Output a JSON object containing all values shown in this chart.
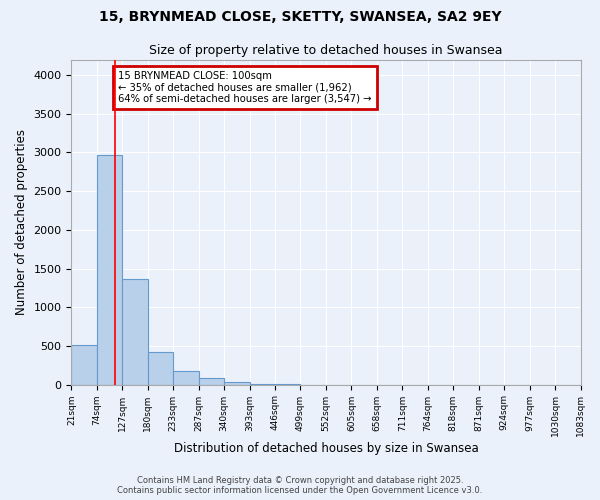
{
  "title1": "15, BRYNMEAD CLOSE, SKETTY, SWANSEA, SA2 9EY",
  "title2": "Size of property relative to detached houses in Swansea",
  "xlabel": "Distribution of detached houses by size in Swansea",
  "ylabel": "Number of detached properties",
  "bar_heights": [
    510,
    2970,
    1360,
    420,
    170,
    80,
    30,
    10,
    10,
    0,
    0,
    0,
    0,
    0,
    0,
    0,
    0,
    0,
    0,
    0
  ],
  "tick_labels": [
    "21sqm",
    "74sqm",
    "127sqm",
    "180sqm",
    "233sqm",
    "287sqm",
    "340sqm",
    "393sqm",
    "446sqm",
    "499sqm",
    "552sqm",
    "605sqm",
    "658sqm",
    "711sqm",
    "764sqm",
    "818sqm",
    "871sqm",
    "924sqm",
    "977sqm",
    "1030sqm",
    "1083sqm"
  ],
  "ylim": [
    0,
    4200
  ],
  "yticks": [
    0,
    500,
    1000,
    1500,
    2000,
    2500,
    3000,
    3500,
    4000
  ],
  "red_line_x": 1.7,
  "annotation_title": "15 BRYNMEAD CLOSE: 100sqm",
  "annotation_line1": "← 35% of detached houses are smaller (1,962)",
  "annotation_line2": "64% of semi-detached houses are larger (3,547) →",
  "footer1": "Contains HM Land Registry data © Crown copyright and database right 2025.",
  "footer2": "Contains public sector information licensed under the Open Government Licence v3.0.",
  "bg_color": "#eaf1fb",
  "plot_bg_color": "#eaf1fb",
  "grid_color": "#ffffff",
  "bar_color": "#b8d0ea",
  "bar_edge_color": "#6699cc",
  "title_fontsize": 10,
  "subtitle_fontsize": 9,
  "annotation_box_color": "#cc0000",
  "n_bars": 20
}
